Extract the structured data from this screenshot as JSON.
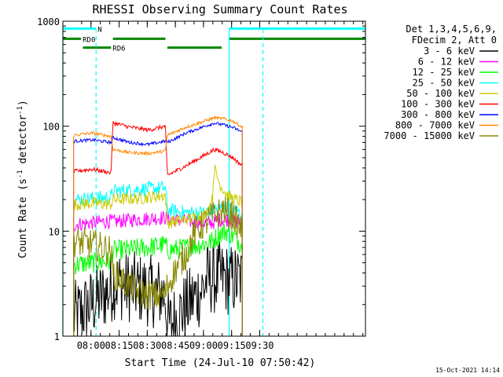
{
  "chart_data": {
    "type": "line",
    "title": "RHESSI Observing Summary Count Rates",
    "xlabel": "Start Time (24-Jul-10 07:50:42)",
    "ylabel": "Count Rate (s⁻¹ detector⁻¹)",
    "ylabel_parts": {
      "base": "Count Rate (s",
      "exp1": "-1",
      "mid": " detector",
      "exp2": "-1",
      "end": ")"
    },
    "yscale": "log",
    "ylim": [
      1,
      1000
    ],
    "xlim_minutes": [
      -5.7,
      155.7
    ],
    "x_unit": "minutes since 07:50:42",
    "xticks": [
      {
        "label": "08:00",
        "t": 9.3
      },
      {
        "label": "08:15",
        "t": 24.3
      },
      {
        "label": "08:30",
        "t": 39.3
      },
      {
        "label": "08:45",
        "t": 54.3
      },
      {
        "label": "09:00",
        "t": 69.3
      },
      {
        "label": "09:15",
        "t": 84.3
      },
      {
        "label": "09:30",
        "t": 99.3
      }
    ],
    "yticks": [
      {
        "label": "1",
        "v": 1
      },
      {
        "label": "10",
        "v": 10
      },
      {
        "label": "100",
        "v": 100
      },
      {
        "label": "1000",
        "v": 1000
      }
    ],
    "legend": {
      "placement": "right",
      "header": [
        "Det 1,3,4,5,6,9,",
        "FDecim 2, Att 0"
      ]
    },
    "series": [
      {
        "name": "3 - 6 keV",
        "color": "#000000",
        "x": [
          0,
          20,
          21,
          49,
          50,
          70,
          71,
          80,
          83,
          85,
          90
        ],
        "y": [
          1.5,
          2.8,
          3.2,
          2.5,
          1.2,
          3.0,
          3.5,
          3.6,
          3.4,
          3.4,
          3.4
        ]
      },
      {
        "name": "6 - 12 keV",
        "color": "#ff00ff",
        "x": [
          0,
          10,
          20,
          21,
          35,
          49,
          50,
          60,
          70,
          74,
          78,
          82,
          85,
          90
        ],
        "y": [
          11.5,
          12,
          12.5,
          12.3,
          13,
          13.5,
          13.2,
          12.5,
          12,
          12,
          12.8,
          13,
          12.5,
          12
        ]
      },
      {
        "name": "12 - 25 keV",
        "color": "#00ff00",
        "x": [
          0,
          20,
          21,
          40,
          49,
          50,
          60,
          70,
          74,
          78,
          82,
          85,
          90
        ],
        "y": [
          4.8,
          5.2,
          6.5,
          7,
          7.5,
          6.5,
          7,
          7.6,
          8,
          9.5,
          10,
          9,
          7.5
        ]
      },
      {
        "name": "25 - 50 keV",
        "color": "#00ffff",
        "x": [
          0,
          20,
          21,
          35,
          49,
          50,
          60,
          70,
          75,
          80,
          85,
          90
        ],
        "y": [
          20,
          21,
          24,
          25,
          26,
          16,
          15,
          15,
          16,
          17,
          16,
          15
        ]
      },
      {
        "name": "50 - 100 keV",
        "color": "#cccc00",
        "x": [
          0,
          10,
          20,
          21,
          35,
          49,
          50,
          60,
          70,
          74,
          75,
          78,
          82,
          86,
          90
        ],
        "y": [
          18,
          18.5,
          18,
          20,
          20.5,
          22,
          12,
          13,
          14,
          20,
          40,
          28,
          22,
          20,
          19
        ]
      },
      {
        "name": "100 - 300 keV",
        "color": "#ff0000",
        "x": [
          0,
          10,
          20,
          21,
          30,
          40,
          49,
          50,
          60,
          70,
          75,
          80,
          85,
          90
        ],
        "y": [
          37,
          39,
          36,
          108,
          98,
          92,
          100,
          34,
          42,
          53,
          60,
          56,
          50,
          42
        ]
      },
      {
        "name": "300 - 800 keV",
        "color": "#0000ff",
        "x": [
          0,
          10,
          20,
          21,
          30,
          40,
          49,
          50,
          60,
          70,
          75,
          80,
          85,
          90
        ],
        "y": [
          72,
          74,
          70,
          78,
          70,
          67,
          72,
          70,
          86,
          100,
          107,
          103,
          97,
          88
        ]
      },
      {
        "name": "800 - 7000 keV",
        "color": "#ff8800",
        "x": [
          0,
          10,
          20,
          21,
          30,
          40,
          49,
          50,
          60,
          70,
          75,
          80,
          85,
          90
        ],
        "y": [
          82,
          86,
          80,
          60,
          56,
          55,
          58,
          82,
          98,
          112,
          120,
          118,
          112,
          98
        ]
      },
      {
        "name": "7000 - 15000 keV",
        "color": "#888800",
        "x": [
          0,
          10,
          20,
          21,
          25,
          30,
          35,
          40,
          45,
          49,
          50,
          55,
          60,
          65,
          70,
          75,
          80,
          85,
          90
        ],
        "y": [
          8,
          7.5,
          6.5,
          4,
          3.5,
          3,
          2.6,
          2.5,
          2.4,
          2.5,
          3,
          4.5,
          6,
          10,
          12,
          14,
          16,
          14,
          10
        ]
      }
    ],
    "status_bars": [
      {
        "label": "N",
        "color": "#00ffff",
        "value": 850,
        "segments": [
          [
            -5.7,
            12
          ],
          [
            83,
            155.7
          ]
        ]
      },
      {
        "label": "RD0",
        "color": "#008800",
        "value": 680,
        "segments": [
          [
            -5.7,
            4
          ],
          [
            21,
            49
          ],
          [
            83,
            155.7
          ]
        ]
      },
      {
        "label": "RD6",
        "color": "#008800",
        "value": 560,
        "segments": [
          [
            5,
            20
          ],
          [
            50,
            79
          ]
        ]
      }
    ],
    "vlines": [
      {
        "t": -5.7,
        "color": "#00ffff",
        "style": "solid"
      },
      {
        "t": 12,
        "color": "#00ffff",
        "style": "dashed"
      },
      {
        "t": 83,
        "color": "#00ffff",
        "style": "solid"
      },
      {
        "t": 101,
        "color": "#00ffff",
        "style": "dashed"
      }
    ]
  },
  "footer": {
    "date": "15-Oct-2021 14:14"
  }
}
